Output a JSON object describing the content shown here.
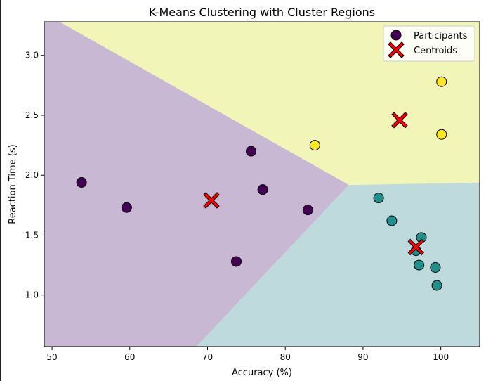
{
  "chart_data": {
    "type": "scatter",
    "title": "K-Means Clustering with Cluster Regions",
    "xlabel": "Accuracy (%)",
    "ylabel": "Reaction Time (s)",
    "xlim": [
      49,
      105
    ],
    "ylim": [
      0.57,
      3.28
    ],
    "xticks": [
      50,
      60,
      70,
      80,
      90,
      100
    ],
    "yticks": [
      1.0,
      1.5,
      2.0,
      2.5,
      3.0
    ],
    "xtick_labels": [
      "50",
      "60",
      "70",
      "80",
      "90",
      "100"
    ],
    "ytick_labels": [
      "1.0",
      "1.5",
      "2.0",
      "2.5",
      "3.0"
    ],
    "grid": false,
    "legend_position": "top-right",
    "legend": [
      "Participants",
      "Centroids"
    ],
    "regions": [
      {
        "cluster": 0,
        "color": "#c8b8d4",
        "polygon": [
          [
            49,
            3.28
          ],
          [
            51,
            3.28
          ],
          [
            88.2,
            1.92
          ],
          [
            68.6,
            0.57
          ],
          [
            49,
            0.57
          ]
        ]
      },
      {
        "cluster": 1,
        "color": "#bfdadc",
        "polygon": [
          [
            88.2,
            1.92
          ],
          [
            105,
            1.94
          ],
          [
            105,
            0.57
          ],
          [
            68.6,
            0.57
          ]
        ]
      },
      {
        "cluster": 2,
        "color": "#f1f6b8",
        "polygon": [
          [
            51,
            3.28
          ],
          [
            105,
            3.28
          ],
          [
            105,
            1.94
          ],
          [
            88.2,
            1.92
          ]
        ]
      }
    ],
    "series": [
      {
        "name": "Participants",
        "points": [
          {
            "x": 53.8,
            "y": 1.94,
            "cluster": 0
          },
          {
            "x": 59.6,
            "y": 1.73,
            "cluster": 0
          },
          {
            "x": 73.7,
            "y": 1.28,
            "cluster": 0
          },
          {
            "x": 75.6,
            "y": 2.2,
            "cluster": 0
          },
          {
            "x": 77.1,
            "y": 1.88,
            "cluster": 0
          },
          {
            "x": 82.9,
            "y": 1.71,
            "cluster": 0
          },
          {
            "x": 92.0,
            "y": 1.81,
            "cluster": 1
          },
          {
            "x": 93.7,
            "y": 1.62,
            "cluster": 1
          },
          {
            "x": 96.8,
            "y": 1.37,
            "cluster": 1
          },
          {
            "x": 97.2,
            "y": 1.25,
            "cluster": 1
          },
          {
            "x": 97.5,
            "y": 1.48,
            "cluster": 1
          },
          {
            "x": 99.3,
            "y": 1.23,
            "cluster": 1
          },
          {
            "x": 99.5,
            "y": 1.08,
            "cluster": 1
          },
          {
            "x": 83.8,
            "y": 2.25,
            "cluster": 2
          },
          {
            "x": 100.1,
            "y": 2.78,
            "cluster": 2
          },
          {
            "x": 100.1,
            "y": 2.34,
            "cluster": 2
          }
        ]
      },
      {
        "name": "Centroids",
        "points": [
          {
            "x": 70.5,
            "y": 1.79
          },
          {
            "x": 96.8,
            "y": 1.4
          },
          {
            "x": 94.7,
            "y": 2.46
          }
        ]
      }
    ],
    "cluster_colors": [
      "#440154",
      "#21908d",
      "#fde725"
    ],
    "centroid_color": "#ff0000"
  }
}
